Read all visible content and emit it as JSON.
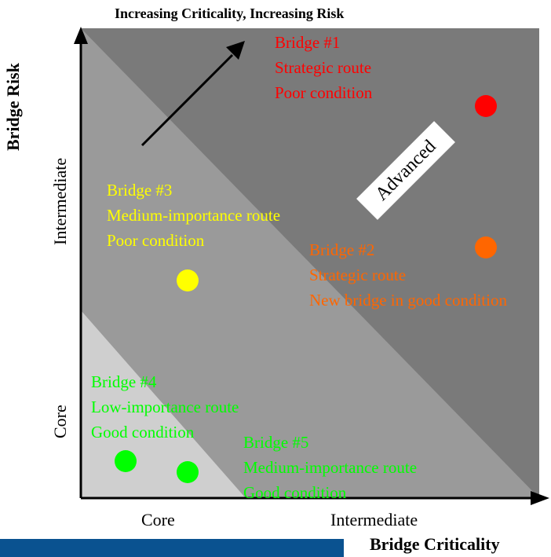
{
  "header": {
    "arrow_caption": "Increasing Criticality, Increasing Risk"
  },
  "axes": {
    "y_title": "Bridge Risk",
    "x_title": "Bridge Criticality",
    "x_ticks": [
      "Core",
      "Intermediate"
    ],
    "y_ticks": [
      "Core",
      "Intermediate"
    ]
  },
  "zones": {
    "advanced_label": "Advanced",
    "colors": {
      "core": "#cfcfcf",
      "intermediate": "#9a9a9a",
      "advanced": "#7a7a7a"
    }
  },
  "bridges": [
    {
      "id": "bridge-1",
      "color": "#ff0000",
      "lines": [
        "Bridge #1",
        "Strategic route",
        "Poor condition"
      ]
    },
    {
      "id": "bridge-2",
      "color": "#ff6600",
      "lines": [
        "Bridge #2",
        "Strategic  route",
        "New bridge in good condition"
      ]
    },
    {
      "id": "bridge-3",
      "color": "#ffff00",
      "lines": [
        "Bridge #3",
        "Medium-importance route",
        "Poor condition"
      ]
    },
    {
      "id": "bridge-4",
      "color": "#00ff00",
      "lines": [
        "Bridge #4",
        "Low-importance route",
        "Good condition"
      ]
    },
    {
      "id": "bridge-5",
      "color": "#00ff00",
      "lines": [
        "Bridge #5",
        "Medium-importance route",
        "Good condition"
      ]
    }
  ],
  "footer": {
    "bar_color": "#0a5290"
  }
}
